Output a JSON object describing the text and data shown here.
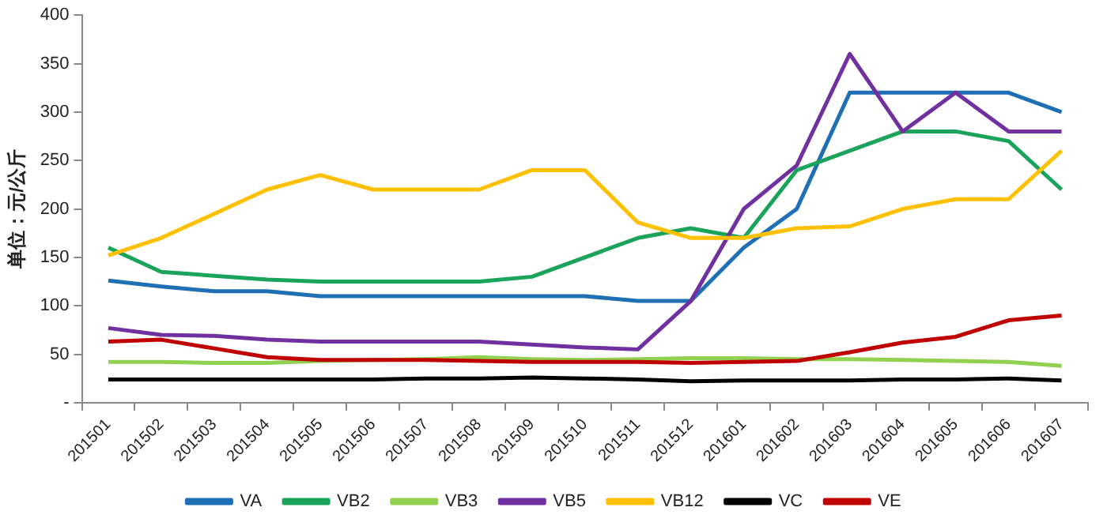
{
  "chart_data": {
    "type": "line",
    "ylabel": "单位：元/公斤",
    "categories": [
      "201501",
      "201502",
      "201503",
      "201504",
      "201505",
      "201506",
      "201507",
      "201508",
      "201509",
      "201510",
      "201511",
      "201512",
      "201601",
      "201602",
      "201603",
      "201604",
      "201605",
      "201606",
      "201607"
    ],
    "ylim": [
      0,
      400
    ],
    "yticks": [
      {
        "value": 0,
        "label": "-"
      },
      50,
      100,
      150,
      200,
      250,
      300,
      350,
      400
    ],
    "grid": false,
    "legend": "bottom",
    "marker": "none",
    "line_style": "solid",
    "series": [
      {
        "name": "VA",
        "color": "#1f6fb5",
        "values": [
          126,
          120,
          115,
          115,
          110,
          110,
          110,
          110,
          110,
          110,
          105,
          105,
          160,
          200,
          320,
          320,
          320,
          320,
          300
        ]
      },
      {
        "name": "VB2",
        "color": "#1aa35b",
        "values": [
          160,
          135,
          131,
          127,
          125,
          125,
          125,
          125,
          130,
          150,
          170,
          180,
          170,
          240,
          260,
          280,
          280,
          270,
          220
        ]
      },
      {
        "name": "VB3",
        "color": "#92d050",
        "values": [
          42,
          42,
          41,
          41,
          43,
          44,
          45,
          47,
          45,
          44,
          45,
          46,
          46,
          45,
          45,
          44,
          43,
          42,
          38
        ]
      },
      {
        "name": "VB5",
        "color": "#7030a0",
        "values": [
          77,
          70,
          69,
          65,
          63,
          63,
          63,
          63,
          60,
          57,
          55,
          105,
          200,
          245,
          360,
          280,
          320,
          280,
          280
        ]
      },
      {
        "name": "VB12",
        "color": "#ffc000",
        "values": [
          152,
          170,
          195,
          220,
          235,
          220,
          220,
          220,
          240,
          240,
          186,
          170,
          170,
          180,
          182,
          200,
          210,
          210,
          260
        ]
      },
      {
        "name": "VC",
        "color": "#000000",
        "values": [
          24,
          24,
          24,
          24,
          24,
          24,
          25,
          25,
          26,
          25,
          24,
          22,
          23,
          23,
          23,
          24,
          24,
          25,
          23
        ]
      },
      {
        "name": "VE",
        "color": "#c00000",
        "values": [
          63,
          65,
          56,
          47,
          44,
          44,
          44,
          43,
          42,
          42,
          42,
          41,
          42,
          43,
          52,
          62,
          68,
          85,
          90
        ]
      }
    ]
  }
}
